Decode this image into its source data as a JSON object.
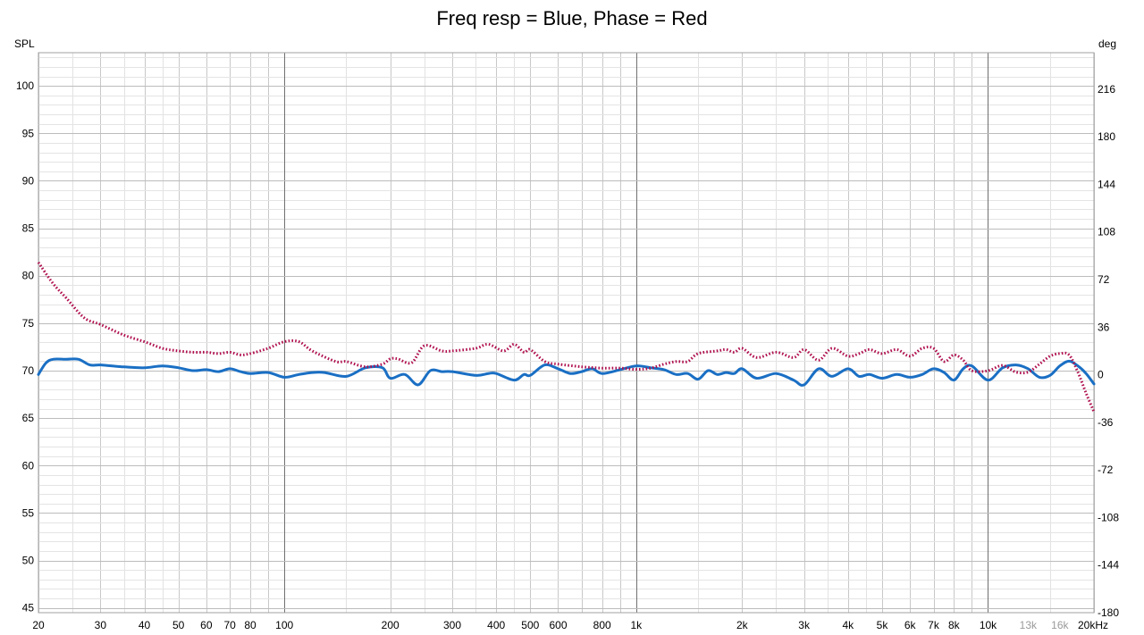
{
  "chart_data": {
    "type": "line",
    "title": "Freq resp = Blue, Phase = Red",
    "ylabel_left": "SPL",
    "ylabel_right": "deg",
    "xscale": "log",
    "xlim": [
      20,
      20000
    ],
    "ylim_left": [
      44.5,
      103.5
    ],
    "ylim_right": [
      -180,
      243.6
    ],
    "grid": true,
    "x_tick_labels": [
      {
        "value": 20,
        "label": "20"
      },
      {
        "value": 30,
        "label": "30"
      },
      {
        "value": 40,
        "label": "40"
      },
      {
        "value": 50,
        "label": "50"
      },
      {
        "value": 60,
        "label": "60"
      },
      {
        "value": 70,
        "label": "70"
      },
      {
        "value": 80,
        "label": "80"
      },
      {
        "value": 100,
        "label": "100"
      },
      {
        "value": 200,
        "label": "200"
      },
      {
        "value": 300,
        "label": "300"
      },
      {
        "value": 400,
        "label": "400"
      },
      {
        "value": 500,
        "label": "500"
      },
      {
        "value": 600,
        "label": "600"
      },
      {
        "value": 800,
        "label": "800"
      },
      {
        "value": 1000,
        "label": "1k"
      },
      {
        "value": 2000,
        "label": "2k"
      },
      {
        "value": 3000,
        "label": "3k"
      },
      {
        "value": 4000,
        "label": "4k"
      },
      {
        "value": 5000,
        "label": "5k"
      },
      {
        "value": 6000,
        "label": "6k"
      },
      {
        "value": 7000,
        "label": "7k"
      },
      {
        "value": 8000,
        "label": "8k"
      },
      {
        "value": 10000,
        "label": "10k"
      },
      {
        "value": 13000,
        "label": "13k",
        "faint": true
      },
      {
        "value": 16000,
        "label": "16k",
        "faint": true
      },
      {
        "value": 20000,
        "label": "20kHz"
      }
    ],
    "y_tick_labels_left": [
      "45",
      "50",
      "55",
      "60",
      "65",
      "70",
      "75",
      "80",
      "85",
      "90",
      "95",
      "100"
    ],
    "y_tick_values_left": [
      45,
      50,
      55,
      60,
      65,
      70,
      75,
      80,
      85,
      90,
      95,
      100
    ],
    "y_tick_labels_right": [
      "-180",
      "-144",
      "-108",
      "-72",
      "-36",
      "0",
      "36",
      "72",
      "108",
      "144",
      "180",
      "216"
    ],
    "y_tick_values_right": [
      -180,
      -144,
      -108,
      -72,
      -36,
      0,
      36,
      72,
      108,
      144,
      180,
      216
    ],
    "series": [
      {
        "name": "Freq resp",
        "color": "#1a6fc4",
        "axis": "left",
        "style": "solid",
        "x": [
          20,
          21,
          22,
          24,
          26,
          28,
          30,
          35,
          40,
          45,
          50,
          55,
          60,
          65,
          70,
          75,
          80,
          90,
          100,
          110,
          120,
          130,
          150,
          170,
          190,
          200,
          220,
          240,
          260,
          280,
          300,
          350,
          380,
          400,
          450,
          480,
          500,
          550,
          600,
          650,
          700,
          750,
          800,
          900,
          1000,
          1100,
          1200,
          1300,
          1400,
          1500,
          1600,
          1700,
          1800,
          1900,
          2000,
          2200,
          2500,
          2800,
          3000,
          3300,
          3600,
          4000,
          4300,
          4600,
          5000,
          5500,
          6000,
          6500,
          7000,
          7500,
          8000,
          8500,
          9000,
          10000,
          11000,
          12000,
          13000,
          14000,
          15000,
          16000,
          17000,
          18000,
          19000,
          20000
        ],
        "y": [
          69.6,
          70.8,
          71.2,
          71.2,
          71.2,
          70.6,
          70.6,
          70.4,
          70.3,
          70.5,
          70.3,
          70.0,
          70.1,
          69.9,
          70.2,
          69.9,
          69.7,
          69.8,
          69.3,
          69.6,
          69.8,
          69.8,
          69.4,
          70.3,
          70.3,
          69.2,
          69.6,
          68.5,
          70.0,
          69.9,
          69.9,
          69.5,
          69.7,
          69.7,
          69.0,
          69.6,
          69.5,
          70.6,
          70.2,
          69.7,
          69.9,
          70.2,
          69.7,
          70.1,
          70.5,
          70.3,
          70.1,
          69.6,
          69.7,
          69.1,
          70.0,
          69.6,
          69.8,
          69.7,
          70.2,
          69.2,
          69.7,
          69.0,
          68.5,
          70.2,
          69.4,
          70.2,
          69.4,
          69.6,
          69.2,
          69.6,
          69.3,
          69.6,
          70.2,
          69.8,
          69.0,
          70.2,
          70.5,
          69.0,
          70.3,
          70.6,
          70.2,
          69.3,
          69.5,
          70.5,
          71.0,
          70.5,
          69.7,
          68.6
        ]
      },
      {
        "name": "Phase",
        "color": "#b0104f",
        "axis": "right",
        "style": "dotted",
        "x": [
          20,
          22,
          24,
          27,
          30,
          35,
          40,
          45,
          50,
          55,
          60,
          65,
          70,
          75,
          80,
          90,
          100,
          110,
          120,
          140,
          150,
          170,
          190,
          200,
          210,
          230,
          250,
          280,
          300,
          350,
          380,
          420,
          450,
          480,
          500,
          550,
          600,
          700,
          800,
          900,
          1000,
          1100,
          1200,
          1300,
          1400,
          1500,
          1700,
          1800,
          1900,
          2000,
          2200,
          2500,
          2800,
          3000,
          3300,
          3600,
          4000,
          4300,
          4600,
          5000,
          5500,
          6000,
          6500,
          7000,
          7500,
          8000,
          8500,
          9000,
          10000,
          11000,
          12000,
          13000,
          14000,
          15000,
          16000,
          17000,
          18000,
          19000,
          20000
        ],
        "y": [
          85,
          69,
          58,
          43,
          38,
          30,
          25,
          20,
          18,
          17,
          17,
          16,
          17,
          15,
          16,
          20,
          25,
          25,
          18,
          10,
          10,
          6,
          8,
          12,
          12,
          9,
          22,
          18,
          18,
          20,
          23,
          18,
          23,
          17,
          19,
          10,
          8,
          6,
          5,
          5,
          4,
          5,
          8,
          10,
          10,
          16,
          18,
          19,
          17,
          20,
          13,
          17,
          13,
          19,
          11,
          20,
          14,
          16,
          19,
          16,
          19,
          14,
          20,
          20,
          10,
          15,
          11,
          3,
          3,
          7,
          2,
          2,
          8,
          14,
          16,
          15,
          2,
          -14,
          -28
        ]
      }
    ]
  }
}
